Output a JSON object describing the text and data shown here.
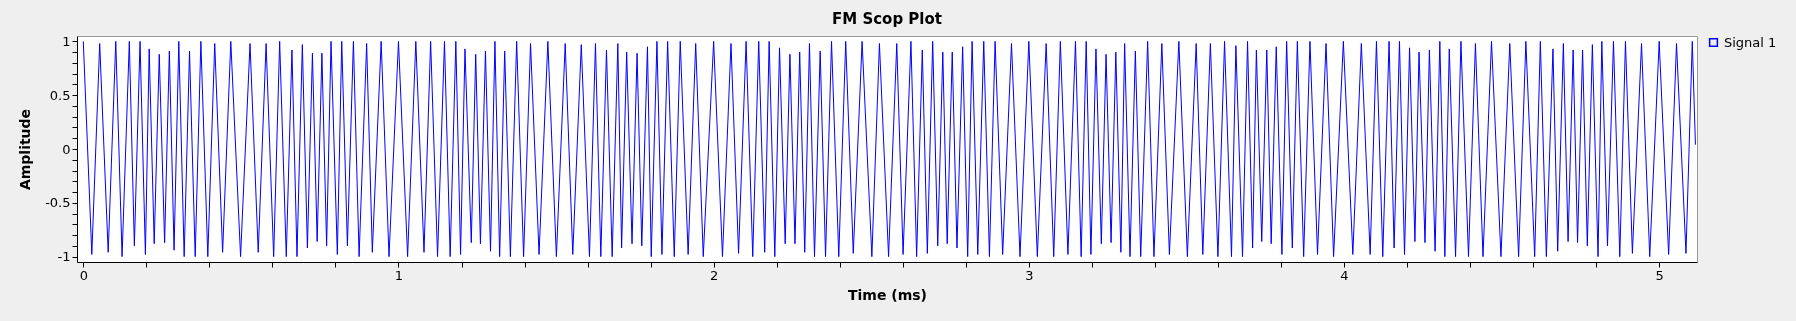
{
  "chart_data": {
    "type": "line",
    "title": "FM Scop Plot",
    "xlabel": "Time (ms)",
    "ylabel": "Amplitude",
    "xlim": [
      -0.02,
      5.12
    ],
    "ylim": [
      -1.05,
      1.05
    ],
    "xticks": [
      0,
      {
        "value": 0.2,
        "label": null
      },
      {
        "value": 0.4,
        "label": null
      },
      {
        "value": 0.6,
        "label": null
      },
      {
        "value": 0.8,
        "label": null
      },
      1,
      {
        "value": 1.2,
        "label": null
      },
      {
        "value": 1.4,
        "label": null
      },
      {
        "value": 1.6,
        "label": null
      },
      {
        "value": 1.8,
        "label": null
      },
      2,
      {
        "value": 2.2,
        "label": null
      },
      {
        "value": 2.4,
        "label": null
      },
      {
        "value": 2.6,
        "label": null
      },
      {
        "value": 2.8,
        "label": null
      },
      3,
      {
        "value": 3.2,
        "label": null
      },
      {
        "value": 3.4,
        "label": null
      },
      {
        "value": 3.6,
        "label": null
      },
      {
        "value": 3.8,
        "label": null
      },
      4,
      {
        "value": 4.2,
        "label": null
      },
      {
        "value": 4.4,
        "label": null
      },
      {
        "value": 4.6,
        "label": null
      },
      {
        "value": 4.8,
        "label": null
      },
      5
    ],
    "yticks": [
      -1,
      {
        "value": -0.9,
        "label": null
      },
      {
        "value": -0.8,
        "label": null
      },
      {
        "value": -0.7,
        "label": null
      },
      {
        "value": -0.6,
        "label": null
      },
      -0.5,
      {
        "value": -0.4,
        "label": null
      },
      {
        "value": -0.3,
        "label": null
      },
      {
        "value": -0.2,
        "label": null
      },
      {
        "value": -0.1,
        "label": null
      },
      0,
      {
        "value": 0.1,
        "label": null
      },
      {
        "value": 0.2,
        "label": null
      },
      {
        "value": 0.3,
        "label": null
      },
      {
        "value": 0.4,
        "label": null
      },
      0.5,
      {
        "value": 0.6,
        "label": null
      },
      {
        "value": 0.7,
        "label": null
      },
      {
        "value": 0.8,
        "label": null
      },
      {
        "value": 0.9,
        "label": null
      },
      1
    ],
    "grid": false,
    "legend": "top right",
    "marker": "none",
    "line_style": "solid",
    "series": [
      {
        "name": "Signal 1",
        "color": "#0000ff",
        "x": [
          0,
          0.027,
          0.052,
          0.079,
          0.103,
          0.123,
          0.146,
          0.162,
          0.18,
          0.197,
          0.209,
          0.225,
          0.241,
          0.258,
          0.273,
          0.288,
          0.303,
          0.32,
          0.337,
          0.355,
          0.373,
          0.395,
          0.417,
          0.442,
          0.468,
          0.499,
          0.529,
          0.555,
          0.58,
          0.604,
          0.623,
          0.644,
          0.662,
          0.678,
          0.695,
          0.711,
          0.727,
          0.742,
          0.757,
          0.772,
          0.786,
          0.806,
          0.82,
          0.838,
          0.857,
          0.875,
          0.899,
          0.917,
          0.945,
          0.97,
          1,
          1.029,
          1.055,
          1.081,
          1.102,
          1.124,
          1.146,
          1.164,
          1.182,
          1.197,
          1.211,
          1.231,
          1.245,
          1.26,
          1.276,
          1.292,
          1.306,
          1.321,
          1.337,
          1.355,
          1.375,
          1.397,
          1.419,
          1.446,
          1.474,
          1.501,
          1.529,
          1.553,
          1.58,
          1.606,
          1.625,
          1.642,
          1.66,
          1.678,
          1.696,
          1.708,
          1.724,
          1.741,
          1.757,
          1.772,
          1.79,
          1.802,
          1.82,
          1.836,
          1.854,
          1.875,
          1.894,
          1.919,
          1.943,
          1.967,
          2,
          2.028,
          2.055,
          2.079,
          2.103,
          2.124,
          2.143,
          2.162,
          2.176,
          2.194,
          2.209,
          2.227,
          2.242,
          2.258,
          2.273,
          2.289,
          2.304,
          2.32,
          2.338,
          2.355,
          2.374,
          2.397,
          2.419,
          2.443,
          2.471,
          2.502,
          2.526,
          2.555,
          2.581,
          2.601,
          2.626,
          2.644,
          2.662,
          2.678,
          2.695,
          2.711,
          2.727,
          2.741,
          2.757,
          2.772,
          2.79,
          2.806,
          2.82,
          2.838,
          2.857,
          2.875,
          2.893,
          2.917,
          2.945,
          2.972,
          3,
          3.027,
          3.055,
          3.079,
          3.1,
          3.124,
          3.148,
          3.166,
          3.182,
          3.197,
          3.213,
          3.23,
          3.245,
          3.261,
          3.276,
          3.292,
          3.304,
          3.321,
          3.338,
          3.355,
          3.377,
          3.397,
          3.422,
          3.446,
          3.476,
          3.503,
          3.531,
          3.552,
          3.576,
          3.6,
          3.621,
          3.643,
          3.657,
          3.678,
          3.694,
          3.71,
          3.722,
          3.739,
          3.755,
          3.769,
          3.785,
          3.803,
          3.818,
          3.836,
          3.852,
          3.872,
          3.892,
          3.916,
          3.943,
          3.967,
          3.998,
          4.028,
          4.055,
          4.083,
          4.103,
          4.123,
          4.143,
          4.159,
          4.176,
          4.192,
          4.208,
          4.225,
          4.238,
          4.257,
          4.271,
          4.289,
          4.304,
          4.32,
          4.334,
          4.354,
          4.371,
          4.395,
          4.417,
          4.441,
          4.468,
          4.498,
          4.526,
          4.554,
          4.577,
          4.605,
          4.623,
          4.642,
          4.663,
          4.678,
          4.696,
          4.711,
          4.727,
          4.741,
          4.757,
          4.772,
          4.788,
          4.806,
          4.818,
          4.836,
          4.855,
          4.875,
          4.893,
          4.915,
          4.944,
          4.97,
          5,
          5.03,
          5.055,
          5.085,
          5.105,
          5.115
        ],
        "values": [
          1,
          -0.98,
          0.98,
          -0.96,
          1,
          -1,
          1,
          -0.9,
          1,
          -0.98,
          0.93,
          -0.88,
          0.88,
          -0.87,
          0.91,
          -0.94,
          1,
          -1,
          0.91,
          -1,
          1,
          -1,
          0.98,
          -0.96,
          1,
          -1,
          0.98,
          -0.96,
          0.98,
          -1,
          1,
          -1,
          0.92,
          -1,
          0.97,
          -0.92,
          0.89,
          -0.86,
          0.89,
          -0.9,
          1,
          -0.98,
          1,
          -0.9,
          1,
          -1,
          0.98,
          -0.96,
          1,
          -1,
          1,
          -1,
          1,
          -0.96,
          1,
          -1,
          1,
          -1,
          1,
          -0.98,
          0.93,
          -0.87,
          0.88,
          -0.88,
          0.91,
          -0.95,
          1,
          -1,
          0.91,
          -1,
          1,
          -1,
          0.98,
          -0.98,
          1,
          -1,
          0.98,
          -0.98,
          0.97,
          -1,
          0.98,
          -1,
          0.92,
          -1,
          0.98,
          -0.92,
          0.9,
          -0.88,
          0.89,
          -0.9,
          0.95,
          -1,
          1,
          -0.98,
          1,
          -1,
          1,
          -0.98,
          0.98,
          -1,
          1,
          -1,
          0.98,
          -0.97,
          1,
          -1,
          1,
          -0.96,
          1,
          -1,
          0.94,
          -0.88,
          0.88,
          -0.88,
          0.9,
          -0.96,
          0.98,
          -1,
          0.91,
          -1,
          1,
          -1,
          1,
          -0.97,
          1,
          -1,
          0.98,
          -1,
          0.98,
          -0.98,
          1,
          -1,
          0.92,
          -0.97,
          1,
          -0.9,
          0.9,
          -0.88,
          0.9,
          -0.92,
          0.95,
          -1,
          1,
          -0.98,
          1,
          -1,
          1,
          -0.98,
          0.98,
          -1,
          1,
          -1,
          0.98,
          -1,
          1,
          -0.98,
          1,
          -1,
          1,
          -0.98,
          0.93,
          -0.88,
          0.88,
          -0.87,
          0.9,
          -0.96,
          0.98,
          -1,
          0.91,
          -1,
          1,
          -1,
          0.98,
          -0.98,
          1,
          -1,
          0.98,
          -0.98,
          0.98,
          -1,
          1,
          -1,
          0.96,
          -1,
          1,
          -0.92,
          0.92,
          -0.86,
          0.92,
          -0.88,
          0.95,
          -0.98,
          1,
          -0.92,
          1,
          -1,
          1,
          -0.98,
          0.98,
          -1,
          1,
          -0.98,
          0.98,
          -0.98,
          1,
          -1,
          1,
          -0.92,
          1,
          -0.98,
          0.94,
          -0.86,
          0.9,
          -0.87,
          0.92,
          -0.95,
          1,
          -1,
          0.93,
          -1,
          1,
          -1,
          0.98,
          -1,
          1,
          -1,
          0.98,
          -1,
          1,
          -1,
          1,
          -1,
          0.93,
          -0.95,
          0.98,
          -0.86,
          0.92,
          -0.87,
          0.92,
          -0.9,
          0.97,
          -1,
          1,
          -0.9,
          1,
          -1,
          1,
          -0.97,
          0.98,
          -1,
          1,
          -0.98,
          0.98,
          -0.97,
          1,
          0.04
        ]
      }
    ]
  }
}
